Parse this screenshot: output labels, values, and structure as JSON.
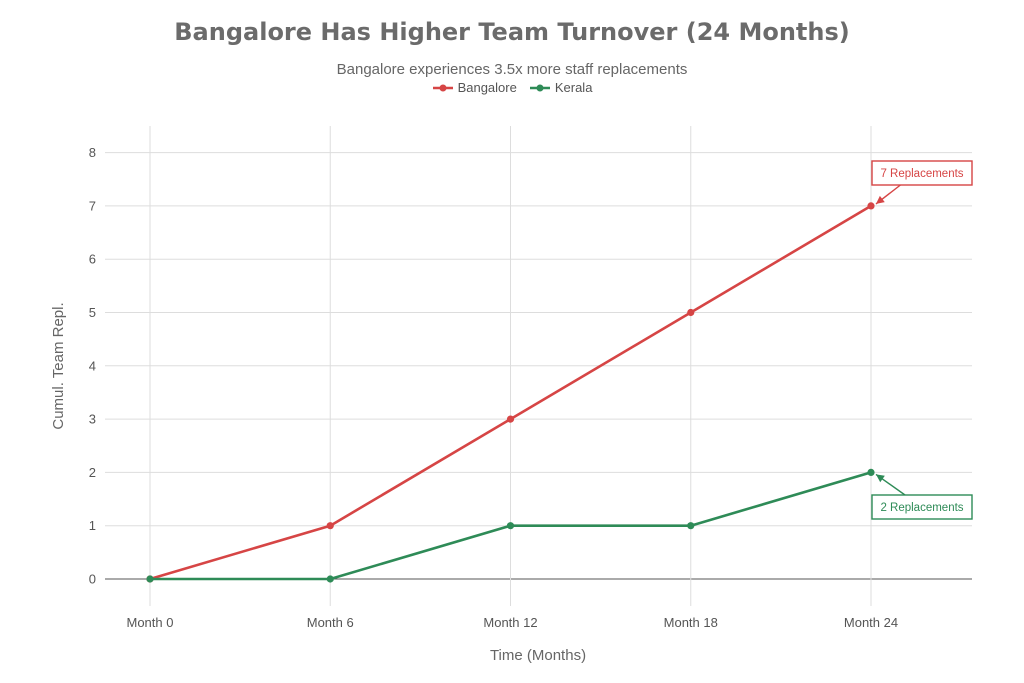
{
  "chart_data": {
    "type": "line",
    "title": "Bangalore Has Higher Team Turnover (24 Months)",
    "subtitle": "Bangalore experiences 3.5x more staff replacements",
    "xlabel": "Time (Months)",
    "ylabel": "Cumul. Team Repl.",
    "categories": [
      "Month 0",
      "Month 6",
      "Month 12",
      "Month 18",
      "Month 24"
    ],
    "ylim": [
      0,
      8
    ],
    "yticks": [
      0,
      1,
      2,
      3,
      4,
      5,
      6,
      7,
      8
    ],
    "grid": true,
    "legend_position": "top-center",
    "series": [
      {
        "name": "Bangalore",
        "color": "#d64545",
        "values": [
          0,
          1,
          3,
          5,
          7
        ]
      },
      {
        "name": "Kerala",
        "color": "#2e8b57",
        "values": [
          0,
          0,
          1,
          1,
          2
        ]
      }
    ],
    "annotations": [
      {
        "text": "7 Replacements",
        "series": "Bangalore",
        "x_index": 4,
        "y": 7,
        "color": "#d64545"
      },
      {
        "text": "2 Replacements",
        "series": "Kerala",
        "x_index": 4,
        "y": 2,
        "color": "#2e8b57"
      }
    ]
  }
}
